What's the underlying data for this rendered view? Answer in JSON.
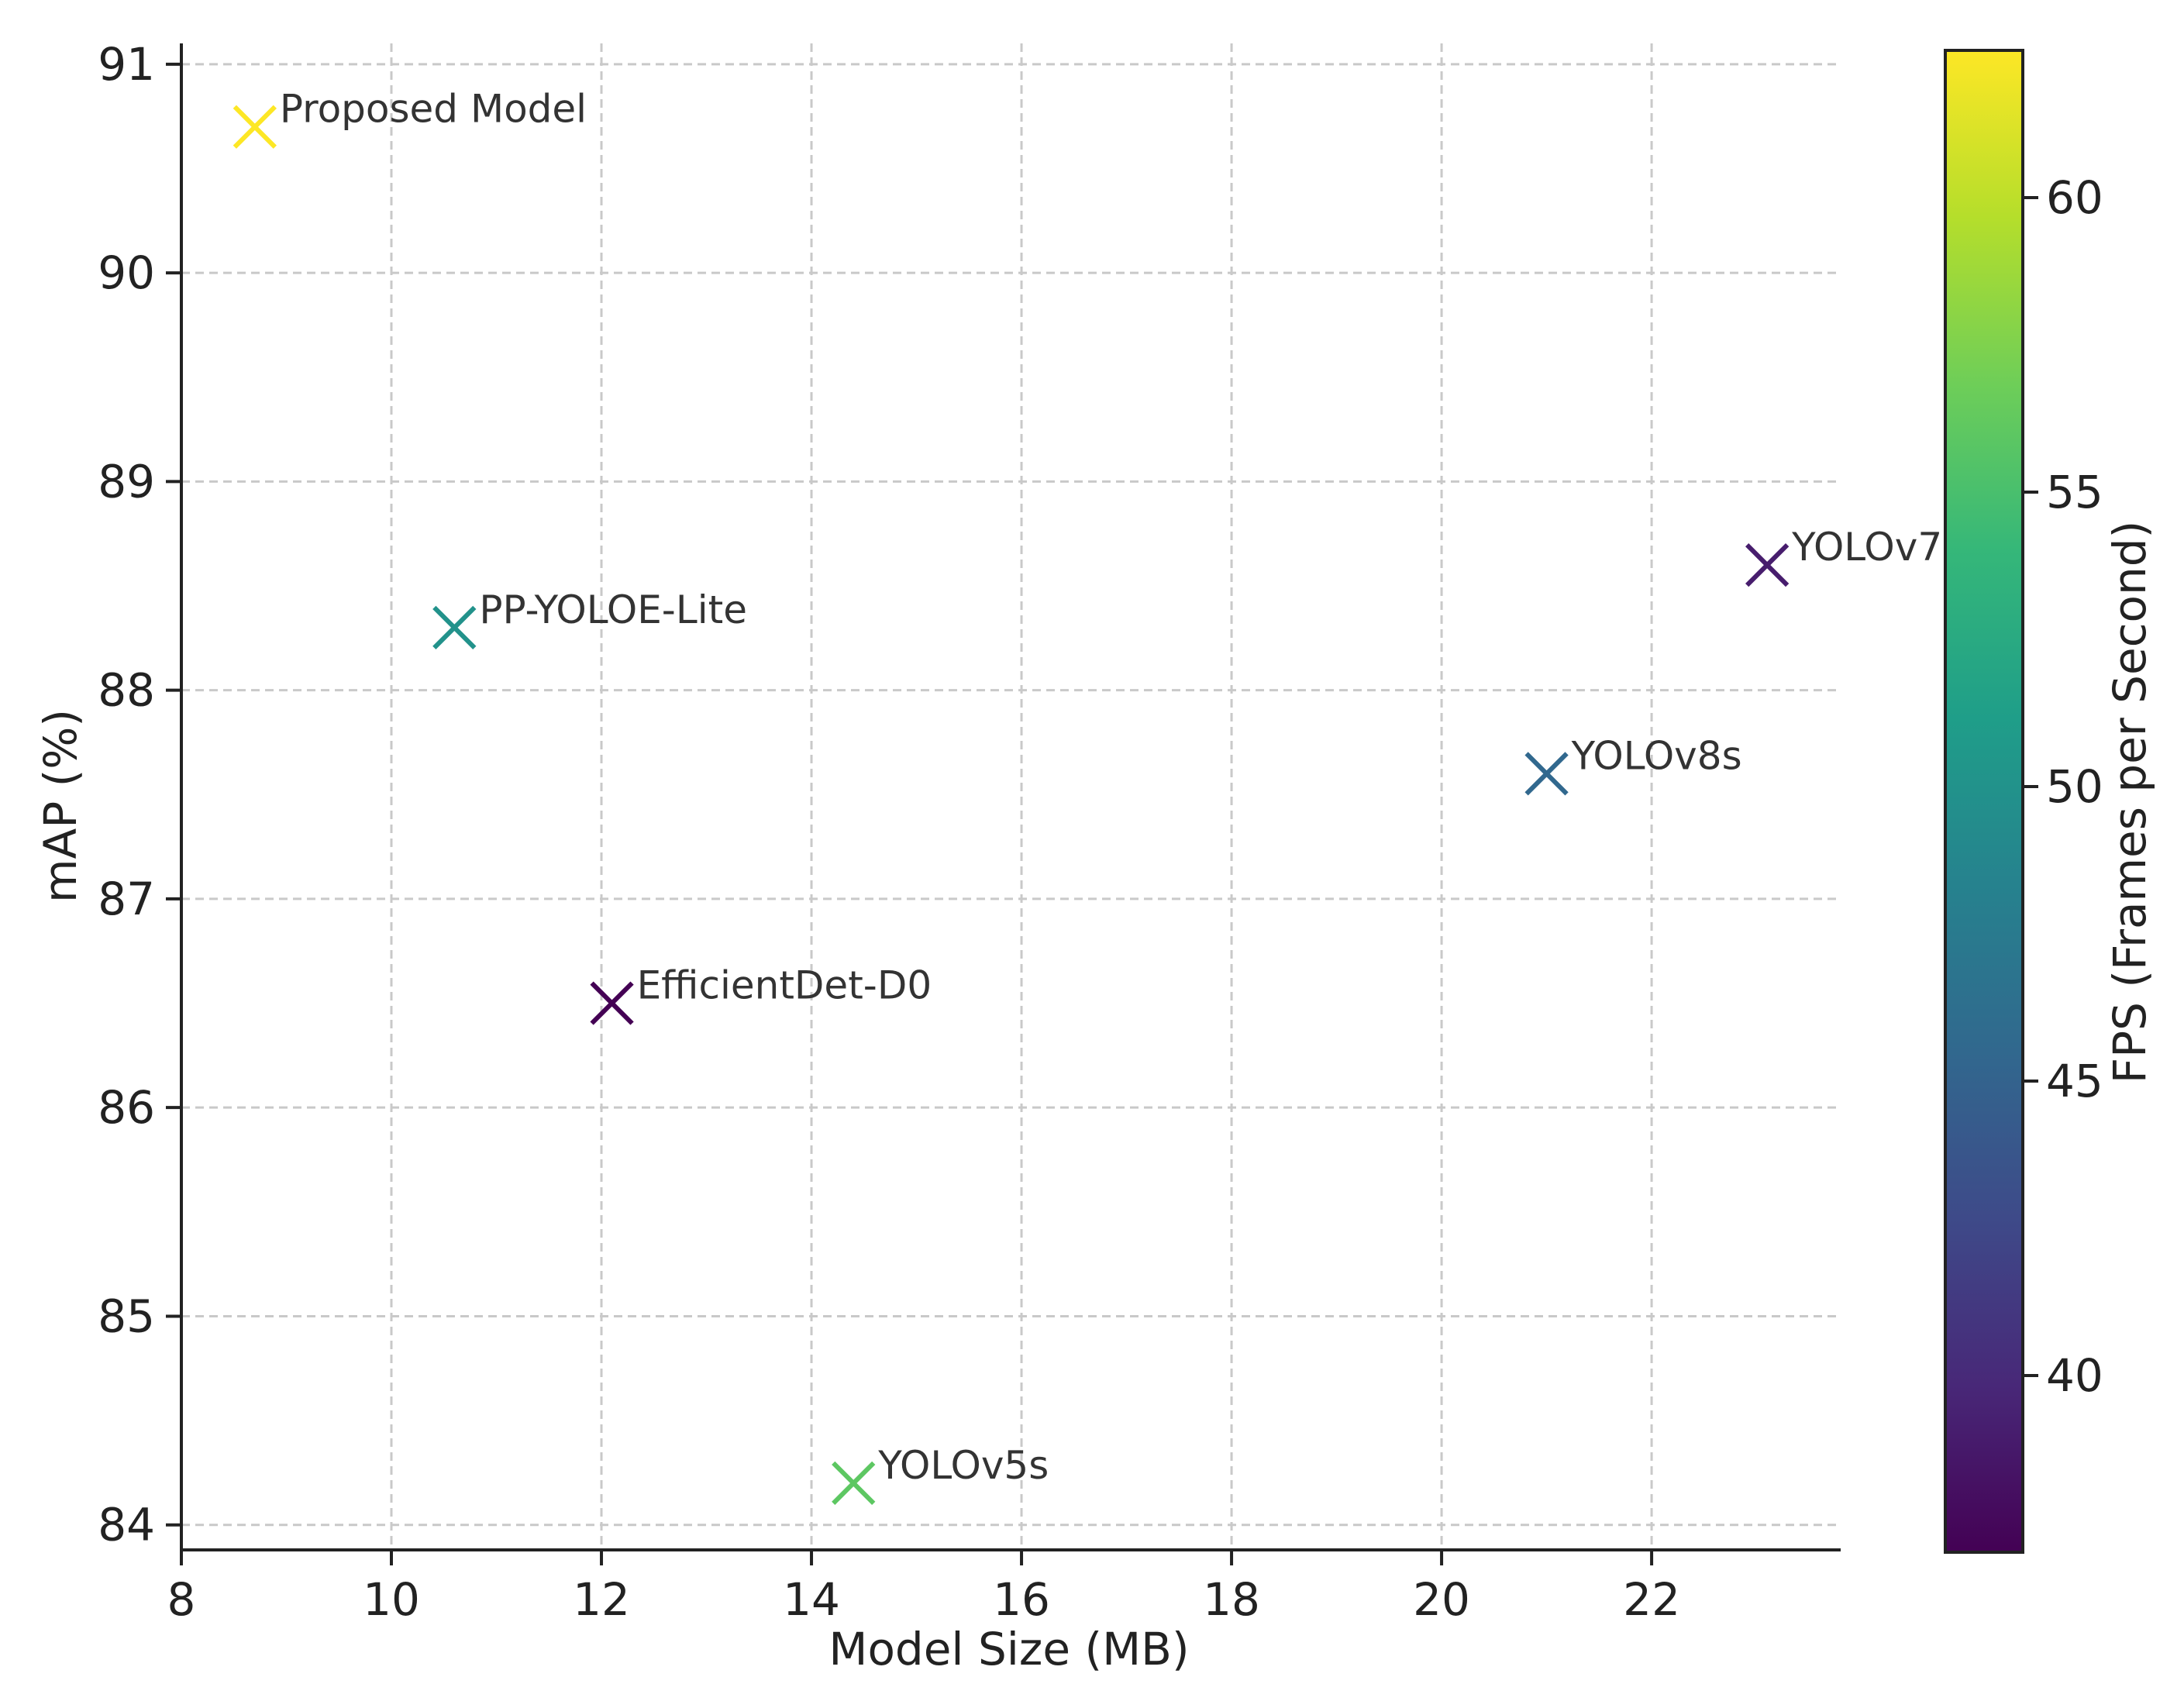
{
  "chart_data": {
    "type": "scatter",
    "xlabel": "Model Size (MB)",
    "ylabel": "mAP (%)",
    "xlim": [
      8,
      23.8
    ],
    "ylim": [
      83.88,
      91.1
    ],
    "xticks": [
      8,
      10,
      12,
      14,
      16,
      18,
      20,
      22
    ],
    "yticks": [
      84,
      85,
      86,
      87,
      88,
      89,
      90,
      91
    ],
    "grid": true,
    "marker": "x",
    "points": [
      {
        "label": "Proposed Model",
        "x": 8.7,
        "y": 90.7,
        "fps": 62.5
      },
      {
        "label": "PP-YOLOE-Lite",
        "x": 10.6,
        "y": 88.3,
        "fps": 50
      },
      {
        "label": "EfficientDet-D0",
        "x": 12.1,
        "y": 86.5,
        "fps": 37
      },
      {
        "label": "YOLOv5s",
        "x": 14.4,
        "y": 84.2,
        "fps": 56
      },
      {
        "label": "YOLOv8s",
        "x": 21.0,
        "y": 87.6,
        "fps": 45.5
      },
      {
        "label": "YOLOv7",
        "x": 23.1,
        "y": 88.6,
        "fps": 39
      }
    ],
    "colorbar": {
      "label": "FPS (Frames per Second)",
      "range": [
        37,
        62.5
      ],
      "ticks": [
        40,
        45,
        50,
        55,
        60
      ],
      "colormap": [
        "#440154",
        "#482878",
        "#3e4a89",
        "#31688e",
        "#26828e",
        "#1f9e89",
        "#35b779",
        "#6ece58",
        "#b5de2b",
        "#fde725"
      ]
    }
  }
}
